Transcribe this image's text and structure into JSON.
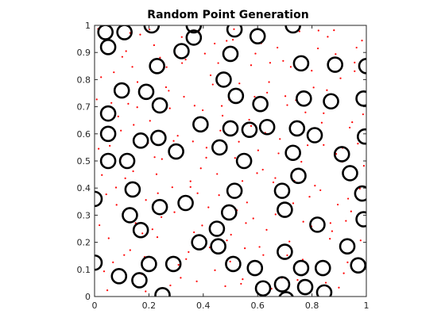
{
  "chart_data": {
    "type": "scatter",
    "title": "Random Point Generation",
    "xlabel": "",
    "ylabel": "",
    "xlim": [
      0,
      1
    ],
    "ylim": [
      0,
      1
    ],
    "grid": false,
    "xticks": [
      0,
      0.2,
      0.4,
      0.6,
      0.8,
      1
    ],
    "xtick_labels": [
      "0",
      "0.2",
      "0.4",
      "0.6",
      "0.8",
      "1"
    ],
    "yticks": [
      0,
      0.1,
      0.2,
      0.3,
      0.4,
      0.5,
      0.6,
      0.7,
      0.8,
      0.9,
      1
    ],
    "ytick_labels": [
      "0",
      "0.1",
      "0.2",
      "0.3",
      "0.4",
      "0.5",
      "0.6",
      "0.7",
      "0.8",
      "0.9",
      "1"
    ],
    "series": [
      {
        "marker": "circle-outline",
        "color": "#000000",
        "points": [
          [
            0.04,
            0.975
          ],
          [
            0.11,
            0.975
          ],
          [
            0.21,
            1.0
          ],
          [
            0.365,
            1.0
          ],
          [
            0.73,
            1.0
          ],
          [
            0.05,
            0.92
          ],
          [
            0.365,
            0.955
          ],
          [
            0.515,
            0.985
          ],
          [
            0.6,
            0.96
          ],
          [
            0.23,
            0.85
          ],
          [
            0.32,
            0.905
          ],
          [
            0.5,
            0.895
          ],
          [
            0.76,
            0.86
          ],
          [
            0.885,
            0.855
          ],
          [
            1.0,
            0.85
          ],
          [
            0.1,
            0.76
          ],
          [
            0.19,
            0.755
          ],
          [
            0.475,
            0.8
          ],
          [
            0.05,
            0.675
          ],
          [
            0.24,
            0.705
          ],
          [
            0.52,
            0.74
          ],
          [
            0.61,
            0.71
          ],
          [
            0.77,
            0.73
          ],
          [
            0.87,
            0.72
          ],
          [
            0.99,
            0.73
          ],
          [
            0.05,
            0.6
          ],
          [
            0.17,
            0.575
          ],
          [
            0.235,
            0.585
          ],
          [
            0.39,
            0.635
          ],
          [
            0.5,
            0.62
          ],
          [
            0.57,
            0.615
          ],
          [
            0.635,
            0.625
          ],
          [
            0.745,
            0.62
          ],
          [
            0.81,
            0.595
          ],
          [
            0.995,
            0.59
          ],
          [
            0.05,
            0.5
          ],
          [
            0.12,
            0.5
          ],
          [
            0.3,
            0.535
          ],
          [
            0.46,
            0.55
          ],
          [
            0.55,
            0.5
          ],
          [
            0.73,
            0.53
          ],
          [
            0.91,
            0.525
          ],
          [
            0.14,
            0.395
          ],
          [
            0.515,
            0.39
          ],
          [
            0.69,
            0.39
          ],
          [
            0.75,
            0.445
          ],
          [
            0.94,
            0.455
          ],
          [
            0.985,
            0.38
          ],
          [
            0.0,
            0.36
          ],
          [
            0.13,
            0.3
          ],
          [
            0.24,
            0.33
          ],
          [
            0.335,
            0.345
          ],
          [
            0.495,
            0.31
          ],
          [
            0.7,
            0.32
          ],
          [
            0.99,
            0.285
          ],
          [
            0.17,
            0.245
          ],
          [
            0.45,
            0.25
          ],
          [
            0.82,
            0.265
          ],
          [
            0.2,
            0.12
          ],
          [
            0.29,
            0.12
          ],
          [
            0.385,
            0.2
          ],
          [
            0.455,
            0.185
          ],
          [
            0.51,
            0.12
          ],
          [
            0.59,
            0.105
          ],
          [
            0.7,
            0.165
          ],
          [
            0.93,
            0.185
          ],
          [
            0.0,
            0.125
          ],
          [
            0.09,
            0.075
          ],
          [
            0.165,
            0.06
          ],
          [
            0.62,
            0.03
          ],
          [
            0.69,
            0.045
          ],
          [
            0.76,
            0.105
          ],
          [
            0.84,
            0.105
          ],
          [
            0.97,
            0.115
          ],
          [
            0.25,
            0.005
          ],
          [
            0.705,
            -0.01
          ],
          [
            0.775,
            0.035
          ],
          [
            0.845,
            0.015
          ]
        ]
      },
      {
        "marker": "dot",
        "color": "#ff0000",
        "points": [
          [
            0.013,
            0.987
          ],
          [
            0.047,
            0.023
          ],
          [
            0.062,
            0.714
          ],
          [
            0.081,
            0.338
          ],
          [
            0.097,
            0.612
          ],
          [
            0.116,
            0.905
          ],
          [
            0.131,
            0.171
          ],
          [
            0.142,
            0.462
          ],
          [
            0.158,
            0.791
          ],
          [
            0.173,
            0.083
          ],
          [
            0.189,
            0.356
          ],
          [
            0.204,
            0.648
          ],
          [
            0.219,
            0.927
          ],
          [
            0.231,
            0.219
          ],
          [
            0.248,
            0.507
          ],
          [
            0.263,
            0.772
          ],
          [
            0.279,
            0.041
          ],
          [
            0.294,
            0.311
          ],
          [
            0.306,
            0.593
          ],
          [
            0.322,
            0.861
          ],
          [
            0.337,
            0.138
          ],
          [
            0.353,
            0.425
          ],
          [
            0.368,
            0.704
          ],
          [
            0.384,
            0.977
          ],
          [
            0.396,
            0.262
          ],
          [
            0.412,
            0.549
          ],
          [
            0.427,
            0.816
          ],
          [
            0.443,
            0.097
          ],
          [
            0.458,
            0.374
          ],
          [
            0.471,
            0.667
          ],
          [
            0.486,
            0.943
          ],
          [
            0.502,
            0.228
          ],
          [
            0.517,
            0.511
          ],
          [
            0.533,
            0.786
          ],
          [
            0.545,
            0.064
          ],
          [
            0.561,
            0.347
          ],
          [
            0.576,
            0.629
          ],
          [
            0.592,
            0.896
          ],
          [
            0.607,
            0.183
          ],
          [
            0.619,
            0.468
          ],
          [
            0.635,
            0.752
          ],
          [
            0.651,
            0.029
          ],
          [
            0.666,
            0.303
          ],
          [
            0.682,
            0.581
          ],
          [
            0.694,
            0.869
          ],
          [
            0.709,
            0.152
          ],
          [
            0.725,
            0.437
          ],
          [
            0.741,
            0.724
          ],
          [
            0.756,
            0.993
          ],
          [
            0.768,
            0.276
          ],
          [
            0.784,
            0.558
          ],
          [
            0.799,
            0.833
          ],
          [
            0.815,
            0.115
          ],
          [
            0.831,
            0.392
          ],
          [
            0.843,
            0.676
          ],
          [
            0.858,
            0.958
          ],
          [
            0.874,
            0.241
          ],
          [
            0.889,
            0.526
          ],
          [
            0.905,
            0.805
          ],
          [
            0.917,
            0.086
          ],
          [
            0.933,
            0.361
          ],
          [
            0.948,
            0.643
          ],
          [
            0.964,
            0.918
          ],
          [
            0.979,
            0.207
          ],
          [
            0.991,
            0.482
          ],
          [
            0.027,
            0.448
          ],
          [
            0.071,
            0.827
          ],
          [
            0.109,
            0.153
          ],
          [
            0.151,
            0.271
          ],
          [
            0.197,
            0.566
          ],
          [
            0.241,
            0.881
          ],
          [
            0.286,
            0.403
          ],
          [
            0.329,
            0.737
          ],
          [
            0.376,
            0.056
          ],
          [
            0.419,
            0.329
          ],
          [
            0.463,
            0.612
          ],
          [
            0.509,
            0.947
          ],
          [
            0.553,
            0.178
          ],
          [
            0.598,
            0.455
          ],
          [
            0.642,
            0.791
          ],
          [
            0.689,
            0.069
          ],
          [
            0.731,
            0.344
          ],
          [
            0.776,
            0.679
          ],
          [
            0.822,
            0.915
          ],
          [
            0.866,
            0.213
          ],
          [
            0.911,
            0.497
          ],
          [
            0.957,
            0.831
          ],
          [
            0.018,
            0.263
          ],
          [
            0.056,
            0.556
          ],
          [
            0.102,
            0.884
          ],
          [
            0.144,
            0.633
          ],
          [
            0.188,
            0.019
          ],
          [
            0.233,
            0.381
          ],
          [
            0.277,
            0.694
          ],
          [
            0.321,
            0.957
          ],
          [
            0.366,
            0.237
          ],
          [
            0.411,
            0.512
          ],
          [
            0.455,
            0.861
          ],
          [
            0.499,
            0.129
          ],
          [
            0.544,
            0.426
          ],
          [
            0.589,
            0.737
          ],
          [
            0.633,
            0.246
          ],
          [
            0.677,
            0.528
          ],
          [
            0.722,
            0.847
          ],
          [
            0.766,
            0.136
          ],
          [
            0.811,
            0.409
          ],
          [
            0.855,
            0.761
          ],
          [
            0.899,
            0.033
          ],
          [
            0.944,
            0.314
          ],
          [
            0.988,
            0.672
          ],
          [
            0.035,
            0.093
          ],
          [
            0.079,
            0.402
          ],
          [
            0.124,
            0.711
          ],
          [
            0.168,
            0.966
          ],
          [
            0.213,
            0.248
          ],
          [
            0.257,
            0.602
          ],
          [
            0.302,
            0.888
          ],
          [
            0.346,
            0.164
          ],
          [
            0.391,
            0.473
          ],
          [
            0.435,
            0.782
          ],
          [
            0.481,
            0.038
          ],
          [
            0.524,
            0.318
          ],
          [
            0.569,
            0.652
          ],
          [
            0.613,
            0.934
          ],
          [
            0.658,
            0.421
          ],
          [
            0.702,
            0.739
          ],
          [
            0.747,
            0.061
          ],
          [
            0.791,
            0.368
          ],
          [
            0.836,
            0.641
          ],
          [
            0.881,
            0.982
          ],
          [
            0.925,
            0.279
          ],
          [
            0.969,
            0.564
          ],
          [
            0.008,
            0.727
          ],
          [
            0.052,
            0.215
          ],
          [
            0.097,
            0.509
          ],
          [
            0.139,
            0.847
          ],
          [
            0.184,
            0.146
          ],
          [
            0.228,
            0.451
          ],
          [
            0.273,
            0.759
          ],
          [
            0.317,
            0.069
          ],
          [
            0.362,
            0.572
          ],
          [
            0.406,
            0.896
          ],
          [
            0.451,
            0.452
          ],
          [
            0.495,
            0.726
          ],
          [
            0.539,
            0.047
          ],
          [
            0.584,
            0.288
          ],
          [
            0.628,
            0.604
          ],
          [
            0.673,
            0.918
          ],
          [
            0.717,
            0.203
          ],
          [
            0.761,
            0.497
          ],
          [
            0.806,
            0.771
          ],
          [
            0.851,
            0.051
          ],
          [
            0.895,
            0.339
          ],
          [
            0.939,
            0.623
          ],
          [
            0.984,
            0.944
          ],
          [
            0.024,
            0.809
          ],
          [
            0.068,
            0.126
          ],
          [
            0.113,
            0.436
          ],
          [
            0.157,
            0.698
          ],
          [
            0.202,
            0.985
          ],
          [
            0.246,
            0.293
          ],
          [
            0.291,
            0.574
          ],
          [
            0.335,
            0.874
          ],
          [
            0.379,
            0.381
          ],
          [
            0.424,
            0.181
          ],
          [
            0.468,
            0.703
          ],
          [
            0.513,
            0.986
          ],
          [
            0.557,
            0.271
          ],
          [
            0.602,
            0.539
          ],
          [
            0.646,
            0.862
          ],
          [
            0.691,
            0.141
          ],
          [
            0.735,
            0.427
          ],
          [
            0.779,
            0.706
          ],
          [
            0.824,
            0.981
          ],
          [
            0.868,
            0.271
          ],
          [
            0.913,
            0.548
          ],
          [
            0.957,
            0.863
          ],
          [
            0.043,
            0.377
          ],
          [
            0.087,
            0.664
          ],
          [
            0.131,
            0.972
          ],
          [
            0.176,
            0.233
          ],
          [
            0.221,
            0.514
          ],
          [
            0.265,
            0.846
          ],
          [
            0.309,
            0.117
          ],
          [
            0.353,
            0.404
          ],
          [
            0.398,
            0.687
          ],
          [
            0.442,
            0.933
          ],
          [
            0.487,
            0.207
          ],
          [
            0.531,
            0.571
          ],
          [
            0.576,
            0.853
          ],
          [
            0.621,
            0.153
          ],
          [
            0.665,
            0.437
          ],
          [
            0.709,
            0.706
          ],
          [
            0.754,
            0.978
          ],
          [
            0.798,
            0.259
          ],
          [
            0.843,
            0.559
          ],
          [
            0.887,
            0.894
          ],
          [
            0.931,
            0.126
          ],
          [
            0.976,
            0.398
          ],
          [
            0.015,
            0.545
          ]
        ]
      }
    ]
  }
}
